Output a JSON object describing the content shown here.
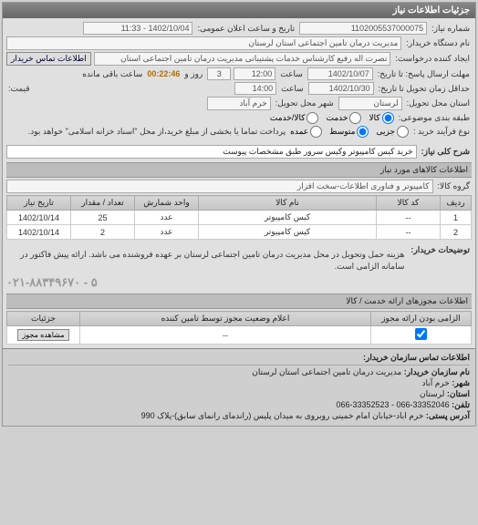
{
  "panel_title": "جزئیات اطلاعات نیاز",
  "header": {
    "labels": {
      "req_no": "شماره نیاز:",
      "announce_dt": "تاریخ و ساعت اعلان عمومی:",
      "buyer_dev": "نام دستگاه خریدار:",
      "requester": "ایجاد کننده درخواست:",
      "contact_btn": "اطلاعات تماس خریدار",
      "reply_deadline": "مهلت ارسال پاسخ: تا تاریخ:",
      "time_lbl1": "ساعت",
      "remaining": "ساعت باقی مانده",
      "delivery_deadline": "حداقل زمان تحویل تا تاریخ:",
      "time_lbl2": "ساعت",
      "price": "قیمت:",
      "delivery_prov": "استان محل تحویل:",
      "delivery_city": "شهر محل تحویل:",
      "pkg_class": "طبقه بندی موضوعی:",
      "payment_proc": "نوع فرآیند خرید :",
      "payment_note": "پرداخت تماما یا بخشی از مبلغ خرید،از محل \"اسناد خزانه اسلامی\" خواهد بود."
    },
    "req_no": "1102005537000075",
    "announce_dt": "1402/10/04 - 11:33",
    "buyer_dev": "مدیریت درمان تامین اجتماعی استان لرستان",
    "requester": "نصرت اله رفیع کارشناس خدمات پشتیبانی مدیریت درمان تامین اجتماعی استان",
    "reply_date": "1402/10/07",
    "reply_time": "12:00",
    "reply_days": "3",
    "countdown": "00:22:46",
    "delivery_date": "1402/10/30",
    "delivery_time": "14:00",
    "delivery_prov": "لرستان",
    "delivery_city": "خرم آباد",
    "pkg_options": {
      "kala": "کالا",
      "khadmat": "خدمت",
      "both": "کالا/خدمت"
    },
    "payment_options": {
      "low": "جزیی",
      "med": "متوسط",
      "high": "عمده"
    }
  },
  "need": {
    "label": "شرح کلی نیاز:",
    "text": "خرید کیس کامپیوتر وکیس سرور طبق مشخصات پیوست"
  },
  "goods": {
    "section_title": "اطلاعات کالاهای مورد نیاز",
    "group_label": "گروه کالا:",
    "group_value": "کامپیوتر و فناوری اطلاعات-سخت افزار",
    "columns": {
      "row": "ردیف",
      "item_code": "کد کالا",
      "item_name": "نام کالا",
      "unit": "واحد شمارش",
      "qty": "تعداد / مقدار",
      "need_date": "تاریخ نیاز"
    },
    "rows": [
      {
        "n": "1",
        "code": "--",
        "name": "کیس کامپیوتر",
        "unit": "عدد",
        "qty": "25",
        "date": "1402/10/14"
      },
      {
        "n": "2",
        "code": "--",
        "name": "کیس کامپیوتر",
        "unit": "عدد",
        "qty": "2",
        "date": "1402/10/14"
      }
    ]
  },
  "buyer_notes": {
    "label": "توضیحات خریدار:",
    "text": "هزینه حمل وتحویل در محل مدیریت درمان تامین اجتماعی لرستان بر عهده فروشنده می باشد. ارائه پیش فاکتور در سامانه الزامی است.",
    "phone": "۰۲۱-۸۸۳۴۹۶۷۰ - ۵"
  },
  "license": {
    "section_title": "اطلاعات مجوزهای ارائه خدمت / کالا",
    "columns": {
      "required": "الزامی بودن ارائه مجوز",
      "status": "اعلام وضعیت مجوز توسط تامین کننده",
      "details": "جزئیات"
    },
    "row": {
      "status": "--",
      "btn": "مشاهده مجوز"
    }
  },
  "footer": {
    "title": "اطلاعات تماس سازمان خریدار:",
    "labels": {
      "org": "نام سازمان خریدار:",
      "city": "شهر:",
      "prov": "استان:",
      "tel": "تلفن:",
      "addr": "آدرس پستی:"
    },
    "org": "مدیریت درمان تامین اجتماعی استان لرستان",
    "city": "خرم آباد",
    "prov": "لرستان",
    "tel": "33352046-066 - 33352523-066",
    "addr": "خرم اباد-خیابان امام خمینی روبروی به میدان پلیس (راندمای رانمای سابق)-پلاک 990"
  }
}
